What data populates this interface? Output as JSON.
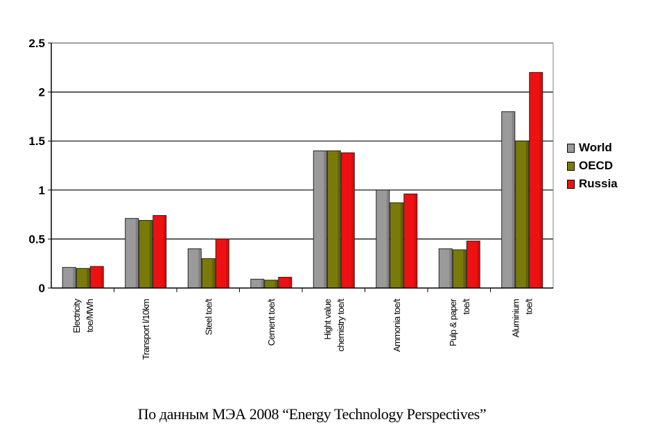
{
  "chart_data": {
    "type": "bar",
    "categories": [
      [
        "Electricity",
        "toe/MWh"
      ],
      [
        "Transport l/10km"
      ],
      [
        "Steel   toe/t"
      ],
      [
        "Cement   toe/t"
      ],
      [
        "Hight value",
        "chemistry   toe/t"
      ],
      [
        "Ammonia   toe/t"
      ],
      [
        "Pulp & paper",
        "toe/t"
      ],
      [
        "Aluminium",
        "toe/t"
      ]
    ],
    "series": [
      {
        "name": "World",
        "color": "#9a9a9a",
        "values": [
          0.21,
          0.71,
          0.4,
          0.09,
          1.4,
          1.0,
          0.4,
          1.8
        ]
      },
      {
        "name": "OECD",
        "color": "#7a7a0a",
        "values": [
          0.2,
          0.69,
          0.3,
          0.08,
          1.4,
          0.87,
          0.39,
          1.5
        ]
      },
      {
        "name": "Russia",
        "color": "#ee1111",
        "values": [
          0.22,
          0.74,
          0.5,
          0.11,
          1.38,
          0.96,
          0.48,
          2.2
        ]
      }
    ],
    "ylim": [
      0,
      2.5
    ],
    "yticks": [
      "0",
      "0.5",
      "1",
      "1.5",
      "2",
      "2.5"
    ],
    "grid": true,
    "legend": "right"
  },
  "caption": "По данным МЭА 2008 “Energy Technology Perspectives”"
}
